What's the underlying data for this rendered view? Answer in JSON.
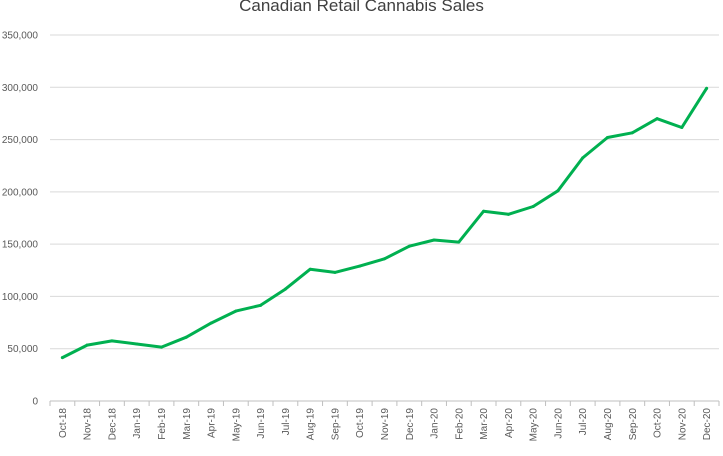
{
  "chart_data": {
    "type": "line",
    "title": "Canadian Retail Cannabis Sales",
    "xlabel": "",
    "ylabel": "",
    "categories": [
      "Oct-18",
      "Nov-18",
      "Dec-18",
      "Jan-19",
      "Feb-19",
      "Mar-19",
      "Apr-19",
      "May-19",
      "Jun-19",
      "Jul-19",
      "Aug-19",
      "Sep-19",
      "Oct-19",
      "Nov-19",
      "Dec-19",
      "Jan-20",
      "Feb-20",
      "Mar-20",
      "Apr-20",
      "May-20",
      "Jun-20",
      "Jul-20",
      "Aug-20",
      "Sep-20",
      "Oct-20",
      "Nov-20",
      "Dec-20"
    ],
    "y_tick_labels": [
      "0",
      "50,000",
      "100,000",
      "150,000",
      "200,000",
      "250,000",
      "300,000",
      "350,000"
    ],
    "ylim": [
      0,
      350000
    ],
    "y_ticks": [
      0,
      50000,
      100000,
      150000,
      200000,
      250000,
      300000,
      350000
    ],
    "grid": true,
    "legend": "none",
    "series": [
      {
        "values": [
          41500,
          53500,
          57500,
          54500,
          51500,
          61000,
          74500,
          86000,
          91500,
          107000,
          126000,
          123000,
          129000,
          136000,
          148000,
          154000,
          152000,
          181500,
          178500,
          186000,
          201000,
          232500,
          252000,
          256500,
          270000,
          261500,
          299000
        ],
        "color": "#00b050"
      }
    ],
    "colors": {
      "gridline": "#d9d9d9",
      "axis": "#bfbfbf",
      "text": "#595959",
      "title": "#404040"
    }
  }
}
